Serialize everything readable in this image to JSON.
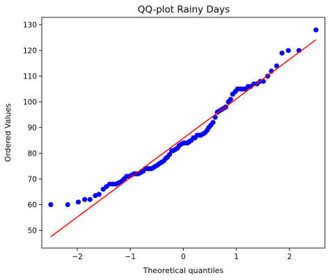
{
  "chart_data": {
    "type": "scatter",
    "title": "QQ-plot Rainy Days",
    "xlabel": "Theoretical quantiles",
    "ylabel": "Ordered Values",
    "xlim": [
      -2.67,
      2.67
    ],
    "ylim": [
      43.1,
      132.9
    ],
    "xticks": [
      -2,
      -1,
      0,
      1,
      2
    ],
    "xtick_labels": [
      "−2",
      "−1",
      "0",
      "1",
      "2"
    ],
    "yticks": [
      50,
      60,
      70,
      80,
      90,
      100,
      110,
      120,
      130
    ],
    "ytick_labels": [
      "50",
      "60",
      "70",
      "80",
      "90",
      "100",
      "110",
      "120",
      "130"
    ],
    "grid": false,
    "series": [
      {
        "color": "#0000ff",
        "marker": "circle",
        "points": [
          [
            -2.5,
            60.0
          ],
          [
            -2.18,
            60.0
          ],
          [
            -1.98,
            61.0
          ],
          [
            -1.86,
            62.0
          ],
          [
            -1.76,
            62.0
          ],
          [
            -1.66,
            63.5
          ],
          [
            -1.59,
            64.0
          ],
          [
            -1.51,
            66.0
          ],
          [
            -1.45,
            67.0
          ],
          [
            -1.39,
            68.0
          ],
          [
            -1.33,
            68.0
          ],
          [
            -1.27,
            68.0
          ],
          [
            -1.22,
            68.5
          ],
          [
            -1.17,
            69.0
          ],
          [
            -1.12,
            70.0
          ],
          [
            -1.07,
            71.0
          ],
          [
            -1.02,
            71.0
          ],
          [
            -0.98,
            71.5
          ],
          [
            -0.93,
            72.0
          ],
          [
            -0.89,
            72.0
          ],
          [
            -0.85,
            72.0
          ],
          [
            -0.8,
            72.5
          ],
          [
            -0.76,
            73.0
          ],
          [
            -0.72,
            74.0
          ],
          [
            -0.68,
            74.0
          ],
          [
            -0.64,
            74.0
          ],
          [
            -0.6,
            74.0
          ],
          [
            -0.56,
            74.5
          ],
          [
            -0.52,
            75.0
          ],
          [
            -0.48,
            75.5
          ],
          [
            -0.45,
            76.0
          ],
          [
            -0.41,
            76.5
          ],
          [
            -0.37,
            77.0
          ],
          [
            -0.33,
            78.0
          ],
          [
            -0.3,
            78.5
          ],
          [
            -0.26,
            79.5
          ],
          [
            -0.22,
            81.0
          ],
          [
            -0.19,
            81.0
          ],
          [
            -0.15,
            81.5
          ],
          [
            -0.11,
            82.0
          ],
          [
            -0.08,
            83.0
          ],
          [
            -0.04,
            83.5
          ],
          [
            0.0,
            84.0
          ],
          [
            0.04,
            84.0
          ],
          [
            0.08,
            84.0
          ],
          [
            0.11,
            84.5
          ],
          [
            0.15,
            85.0
          ],
          [
            0.19,
            86.0
          ],
          [
            0.22,
            86.0
          ],
          [
            0.26,
            87.0
          ],
          [
            0.3,
            87.0
          ],
          [
            0.33,
            87.0
          ],
          [
            0.37,
            87.5
          ],
          [
            0.41,
            88.0
          ],
          [
            0.45,
            89.0
          ],
          [
            0.48,
            90.0
          ],
          [
            0.52,
            91.0
          ],
          [
            0.56,
            92.0
          ],
          [
            0.6,
            94.0
          ],
          [
            0.64,
            96.0
          ],
          [
            0.68,
            96.5
          ],
          [
            0.72,
            97.0
          ],
          [
            0.76,
            97.5
          ],
          [
            0.8,
            98.0
          ],
          [
            0.85,
            100.0
          ],
          [
            0.89,
            101.0
          ],
          [
            0.93,
            103.0
          ],
          [
            0.98,
            104.0
          ],
          [
            1.02,
            105.0
          ],
          [
            1.07,
            105.0
          ],
          [
            1.12,
            105.0
          ],
          [
            1.17,
            105.0
          ],
          [
            1.22,
            106.0
          ],
          [
            1.27,
            106.0
          ],
          [
            1.33,
            107.0
          ],
          [
            1.39,
            107.0
          ],
          [
            1.45,
            108.0
          ],
          [
            1.51,
            108.0
          ],
          [
            1.59,
            110.0
          ],
          [
            1.66,
            112.0
          ],
          [
            1.76,
            114.0
          ],
          [
            1.86,
            119.0
          ],
          [
            1.98,
            120.0
          ],
          [
            2.18,
            120.0
          ],
          [
            2.5,
            128.0
          ]
        ]
      },
      {
        "color": "#ff0000",
        "type": "line",
        "x": [
          -2.5,
          2.5
        ],
        "y": [
          47.5,
          124.2
        ]
      }
    ]
  }
}
